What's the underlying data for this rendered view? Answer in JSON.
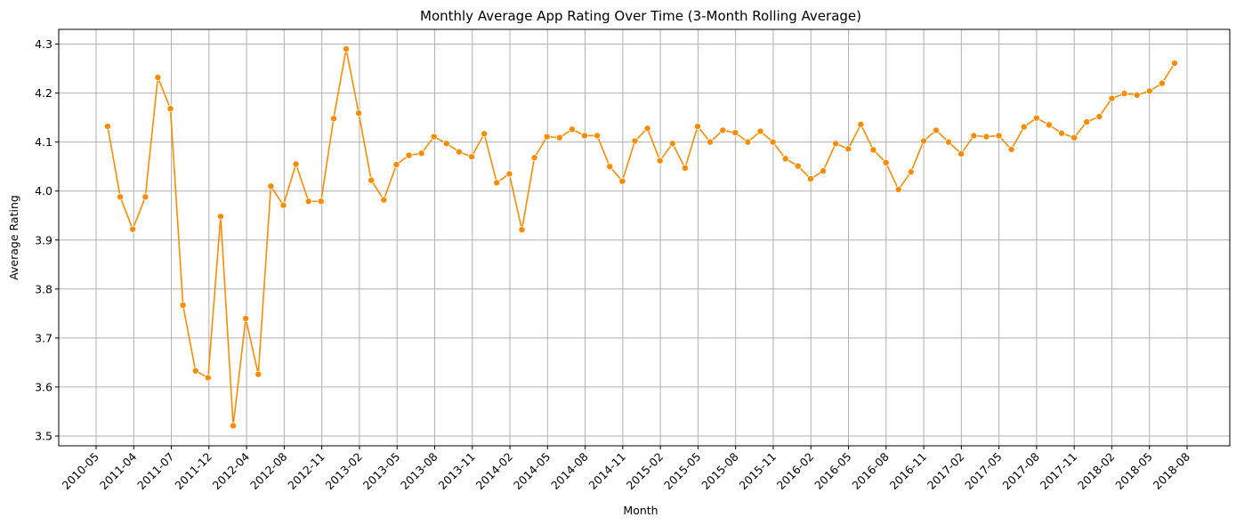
{
  "chart_data": {
    "type": "line",
    "title": "Monthly Average App Rating Over Time (3-Month Rolling Average)",
    "xlabel": "Month",
    "ylabel": "Average Rating",
    "ylim": [
      3.48,
      4.33
    ],
    "y_ticks": [
      3.5,
      3.6,
      3.7,
      3.8,
      3.9,
      4.0,
      4.1,
      4.2,
      4.3
    ],
    "x_ticks": [
      "2010-05",
      "2011-04",
      "2011-07",
      "2011-12",
      "2012-04",
      "2012-08",
      "2012-11",
      "2013-02",
      "2013-05",
      "2013-08",
      "2013-11",
      "2014-02",
      "2014-05",
      "2014-08",
      "2014-11",
      "2015-02",
      "2015-05",
      "2015-08",
      "2015-11",
      "2016-02",
      "2016-05",
      "2016-08",
      "2016-11",
      "2017-02",
      "2017-05",
      "2017-08",
      "2017-11",
      "2018-02",
      "2018-05",
      "2018-08"
    ],
    "grid": true,
    "color": "#ff8c00",
    "series": [
      {
        "values": [
          4.132,
          3.988,
          3.922,
          3.988,
          4.232,
          4.168,
          3.767,
          3.633,
          3.619,
          3.948,
          3.521,
          3.74,
          3.626,
          4.01,
          3.971,
          4.055,
          3.979,
          3.979,
          4.148,
          4.29,
          4.159,
          4.022,
          3.982,
          4.054,
          4.073,
          4.077,
          4.111,
          4.097,
          4.08,
          4.07,
          4.117,
          4.017,
          4.035,
          3.921,
          4.068,
          4.111,
          4.109,
          4.126,
          4.113,
          4.113,
          4.05,
          4.02,
          4.102,
          4.128,
          4.062,
          4.097,
          4.047,
          4.132,
          4.1,
          4.124,
          4.119,
          4.1,
          4.122,
          4.1,
          4.066,
          4.051,
          4.025,
          4.041,
          4.097,
          4.086,
          4.136,
          4.084,
          4.058,
          4.003,
          4.039,
          4.102,
          4.124,
          4.1,
          4.076,
          4.113,
          4.111,
          4.113,
          4.085,
          4.131,
          4.149,
          4.135,
          4.118,
          4.109,
          4.141,
          4.152,
          4.189,
          4.199,
          4.196,
          4.204,
          4.22,
          4.261
        ]
      }
    ]
  }
}
